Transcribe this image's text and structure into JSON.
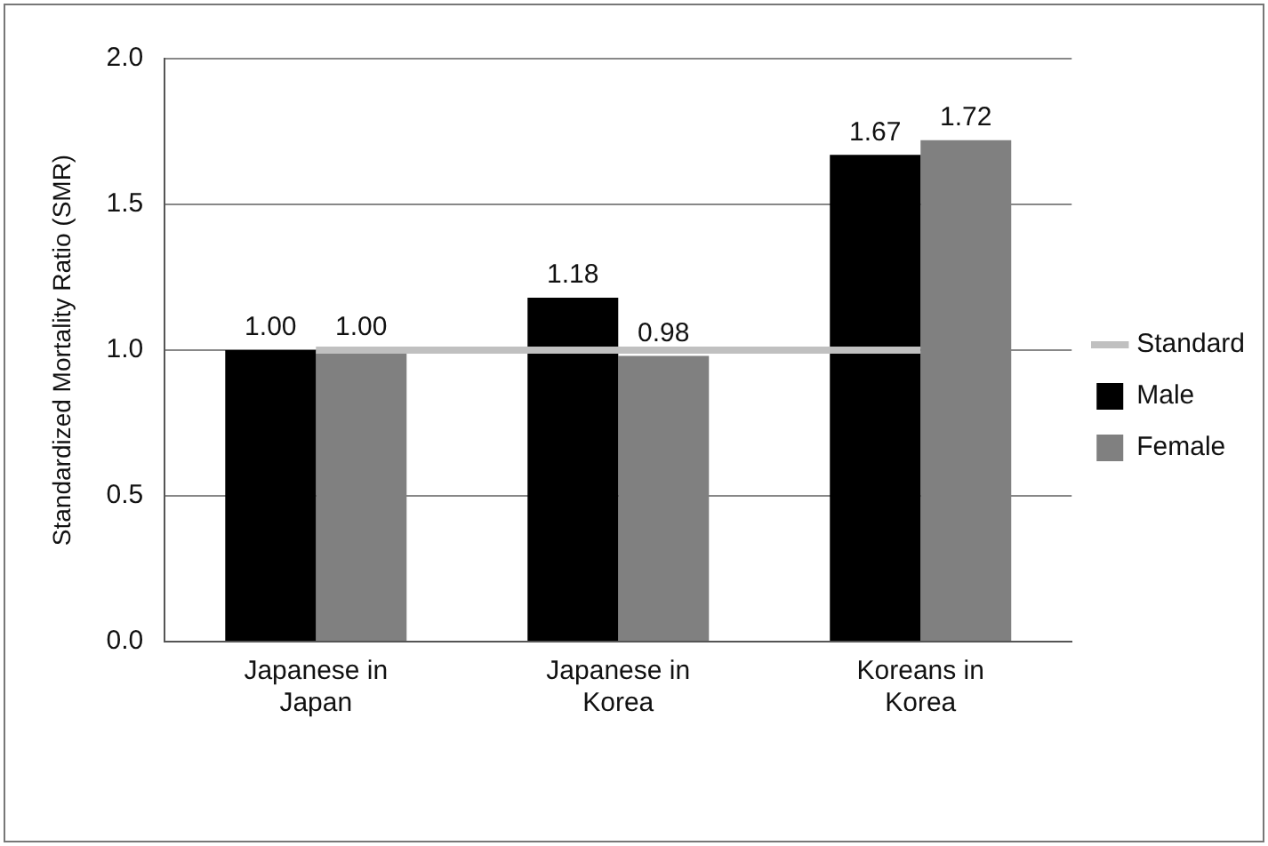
{
  "chart_data": {
    "type": "bar",
    "ylabel": "Standardized Mortality Ratio (SMR)",
    "categories": [
      "Japanese in Japan",
      "Japanese in Korea",
      "Koreans in Korea"
    ],
    "series": [
      {
        "name": "Male",
        "color": "#000000",
        "values": [
          1.0,
          1.18,
          1.67
        ],
        "value_labels": [
          "1.00",
          "1.18",
          "1.67"
        ]
      },
      {
        "name": "Female",
        "color": "#808080",
        "values": [
          1.0,
          0.98,
          1.72
        ],
        "value_labels": [
          "1.00",
          "0.98",
          "1.72"
        ]
      },
      {
        "name": "Standard",
        "type": "line",
        "color": "#c0c0c0",
        "values": [
          1,
          1,
          1
        ]
      }
    ],
    "ylim": [
      0,
      2
    ],
    "yticks": [
      {
        "value": 0,
        "label": "0.0"
      },
      {
        "value": 0.5,
        "label": "0.5"
      },
      {
        "value": 1,
        "label": "1.0"
      },
      {
        "value": 1.5,
        "label": "1.5"
      },
      {
        "value": 2,
        "label": "2.0"
      }
    ],
    "grid": "y",
    "legend": "right",
    "marker": "none"
  }
}
